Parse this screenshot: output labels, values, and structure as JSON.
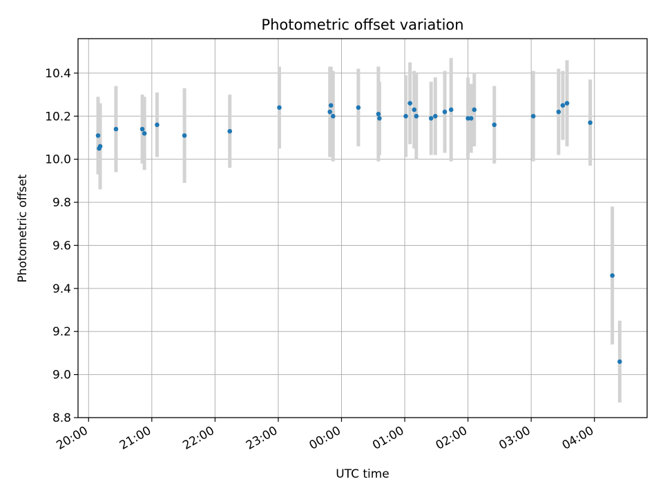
{
  "chart_data": {
    "type": "scatter",
    "title": "Photometric offset variation",
    "xlabel": "UTC time",
    "ylabel": "Photometric offset",
    "xlim": [
      "19:50",
      "04:50"
    ],
    "ylim": [
      8.8,
      10.56
    ],
    "x_ticks": [
      "20:00",
      "21:00",
      "22:00",
      "23:00",
      "00:00",
      "01:00",
      "02:00",
      "03:00",
      "04:00"
    ],
    "y_ticks": [
      "8.8",
      "9.0",
      "9.2",
      "9.4",
      "9.6",
      "9.8",
      "10.0",
      "10.2",
      "10.4"
    ],
    "grid": true,
    "colors": {
      "points": "#1f77b4",
      "errorbars": "#d3d3d3",
      "grid": "#b0b0b0"
    },
    "series": [
      {
        "points": [
          {
            "x": "20:09",
            "y": 10.11,
            "err": 0.18
          },
          {
            "x": "20:10",
            "y": 10.05,
            "err": 0.12
          },
          {
            "x": "20:11",
            "y": 10.06,
            "err": 0.2
          },
          {
            "x": "20:26",
            "y": 10.14,
            "err": 0.2
          },
          {
            "x": "20:51",
            "y": 10.14,
            "err": 0.16
          },
          {
            "x": "20:53",
            "y": 10.12,
            "err": 0.17
          },
          {
            "x": "21:05",
            "y": 10.16,
            "err": 0.15
          },
          {
            "x": "21:31",
            "y": 10.11,
            "err": 0.22
          },
          {
            "x": "22:14",
            "y": 10.13,
            "err": 0.17
          },
          {
            "x": "23:01",
            "y": 10.24,
            "err": 0.19
          },
          {
            "x": "23:49",
            "y": 10.22,
            "err": 0.21
          },
          {
            "x": "23:50",
            "y": 10.25,
            "err": 0.18
          },
          {
            "x": "23:52",
            "y": 10.2,
            "err": 0.21
          },
          {
            "x": "00:16",
            "y": 10.24,
            "err": 0.18
          },
          {
            "x": "00:35",
            "y": 10.21,
            "err": 0.22
          },
          {
            "x": "00:36",
            "y": 10.19,
            "err": 0.17
          },
          {
            "x": "01:01",
            "y": 10.2,
            "err": 0.19
          },
          {
            "x": "01:05",
            "y": 10.26,
            "err": 0.19
          },
          {
            "x": "01:09",
            "y": 10.23,
            "err": 0.18
          },
          {
            "x": "01:11",
            "y": 10.2,
            "err": 0.2
          },
          {
            "x": "01:25",
            "y": 10.19,
            "err": 0.17
          },
          {
            "x": "01:29",
            "y": 10.2,
            "err": 0.18
          },
          {
            "x": "01:38",
            "y": 10.22,
            "err": 0.19
          },
          {
            "x": "01:44",
            "y": 10.23,
            "err": 0.24
          },
          {
            "x": "02:00",
            "y": 10.19,
            "err": 0.19
          },
          {
            "x": "02:03",
            "y": 10.19,
            "err": 0.16
          },
          {
            "x": "02:06",
            "y": 10.23,
            "err": 0.17
          },
          {
            "x": "02:25",
            "y": 10.16,
            "err": 0.18
          },
          {
            "x": "03:02",
            "y": 10.2,
            "err": 0.21
          },
          {
            "x": "03:26",
            "y": 10.22,
            "err": 0.2
          },
          {
            "x": "03:30",
            "y": 10.25,
            "err": 0.16
          },
          {
            "x": "03:34",
            "y": 10.26,
            "err": 0.2
          },
          {
            "x": "03:56",
            "y": 10.17,
            "err": 0.2
          },
          {
            "x": "04:17",
            "y": 9.46,
            "err": 0.32
          },
          {
            "x": "04:24",
            "y": 9.06,
            "err": 0.19
          }
        ]
      }
    ]
  }
}
